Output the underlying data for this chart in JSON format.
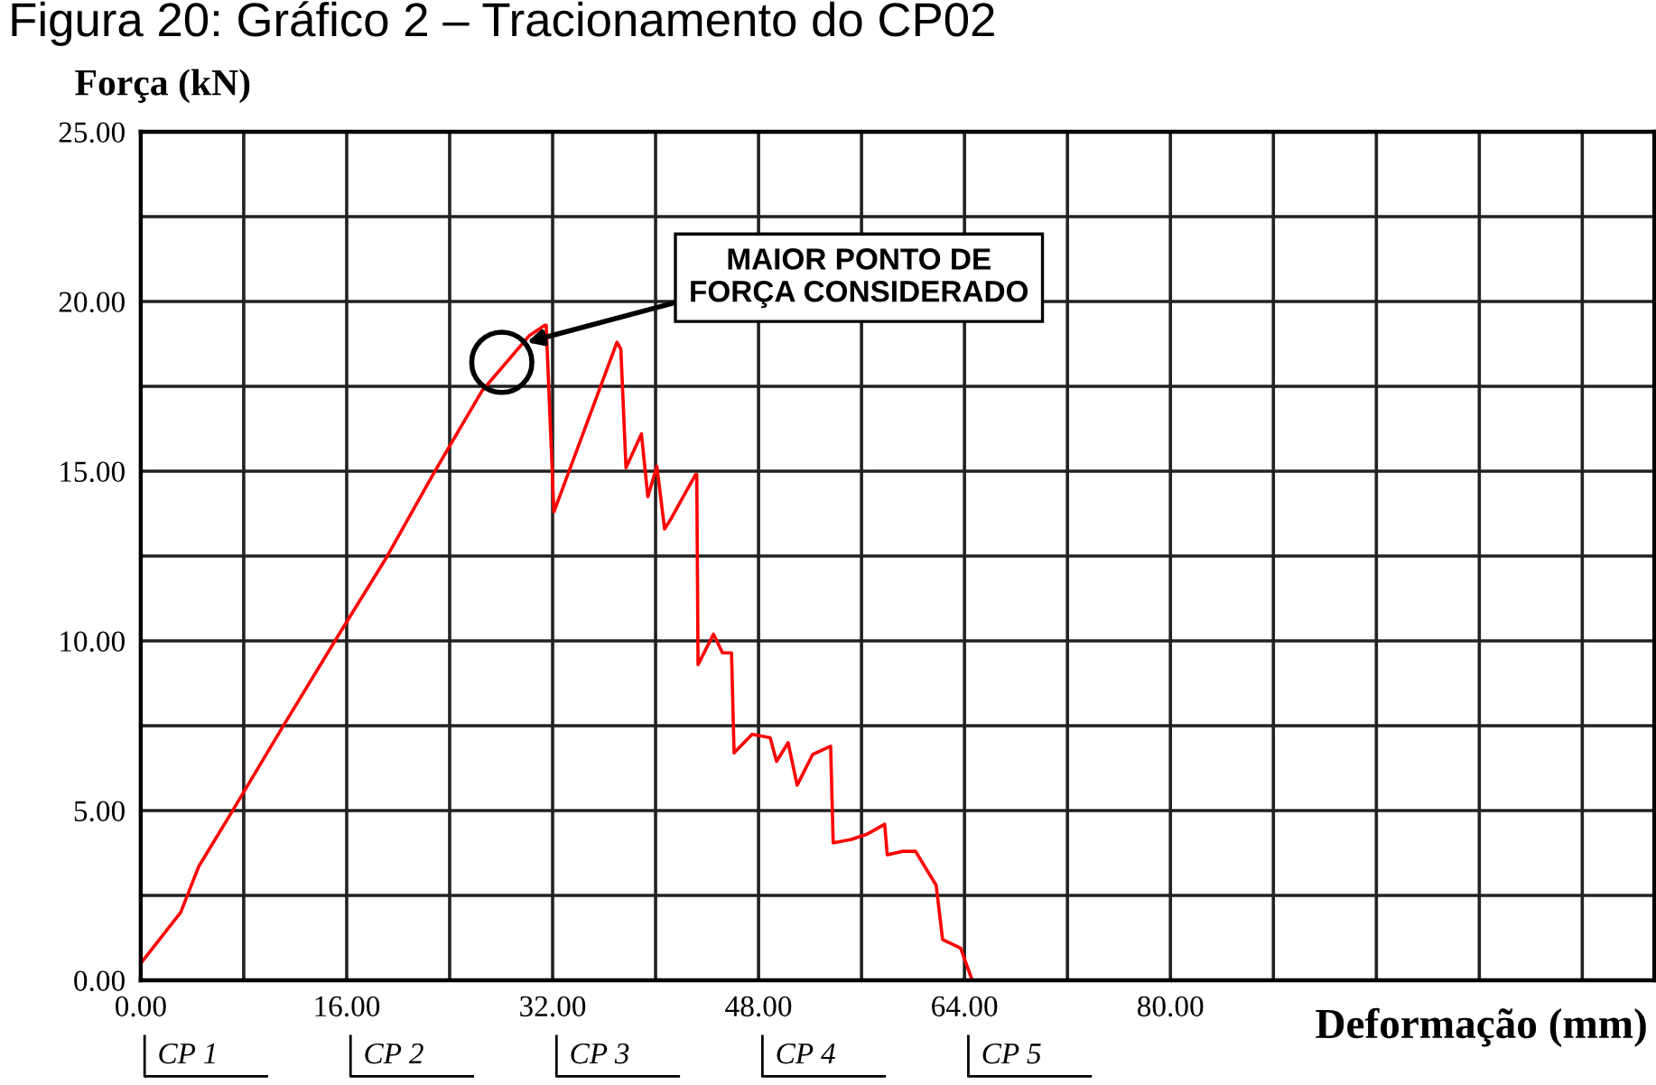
{
  "chart_data": {
    "type": "line",
    "title": "Figura 20: Gráfico 2 – Tracionamento do CP02",
    "xlabel": "Deformação (mm)",
    "ylabel": "Força (kN)",
    "x": [
      0,
      3.1,
      4.5,
      7.06,
      11.0,
      15.25,
      19.0,
      22.7,
      26.5,
      30.2,
      31.4,
      31.5,
      32.1,
      37.0,
      37.3,
      37.7,
      38.9,
      39.4,
      40.1,
      40.7,
      41.2,
      43.1,
      43.2,
      43.3,
      44.5,
      45.2,
      45.9,
      46.1,
      47.5,
      48.9,
      49.4,
      50.3,
      51.0,
      52.2,
      53.6,
      53.8,
      55.2,
      56.4,
      57.8,
      58.0,
      59.2,
      60.2,
      61.8,
      62.3,
      63.7,
      64.6
    ],
    "series": [
      {
        "color": "#ff0000",
        "values": [
          0.5,
          2.0,
          3.35,
          4.95,
          7.45,
          10.1,
          12.4,
          14.9,
          17.36,
          19.0,
          19.3,
          19.3,
          13.8,
          18.8,
          18.6,
          15.1,
          16.1,
          14.25,
          15.15,
          13.3,
          13.6,
          14.9,
          14.9,
          9.3,
          10.2,
          9.65,
          9.65,
          6.7,
          7.25,
          7.15,
          6.45,
          7.0,
          5.75,
          6.65,
          6.9,
          4.05,
          4.15,
          4.3,
          4.6,
          3.7,
          3.8,
          3.8,
          2.8,
          1.2,
          0.95,
          0
        ]
      }
    ],
    "xlim": [
      0,
      117.6
    ],
    "ylim": [
      0,
      25
    ],
    "xticks": [
      {
        "value": 0,
        "label": "0.00"
      },
      {
        "value": 8,
        "label": null
      },
      {
        "value": 16,
        "label": "16.00"
      },
      {
        "value": 24,
        "label": null
      },
      {
        "value": 32,
        "label": "32.00"
      },
      {
        "value": 40,
        "label": null
      },
      {
        "value": 48,
        "label": "48.00"
      },
      {
        "value": 56,
        "label": null
      },
      {
        "value": 64,
        "label": "64.00"
      },
      {
        "value": 72,
        "label": null
      },
      {
        "value": 80,
        "label": "80.00"
      },
      {
        "value": 88,
        "label": null
      },
      {
        "value": 96,
        "label": null
      },
      {
        "value": 104,
        "label": null
      },
      {
        "value": 112,
        "label": null
      }
    ],
    "yticks": [
      {
        "value": 0,
        "label": "0.00"
      },
      {
        "value": 2.5,
        "label": null
      },
      {
        "value": 5,
        "label": "5.00"
      },
      {
        "value": 7.5,
        "label": null
      },
      {
        "value": 10,
        "label": "10.00"
      },
      {
        "value": 12.5,
        "label": null
      },
      {
        "value": 15,
        "label": "15.00"
      },
      {
        "value": 17.5,
        "label": null
      },
      {
        "value": 20,
        "label": "20.00"
      },
      {
        "value": 22.5,
        "label": null
      },
      {
        "value": 25,
        "label": "25.00"
      }
    ],
    "grid": true,
    "marker": "none",
    "line_style": "solid",
    "annotations": [
      {
        "text": "MAIOR PONTO DE\nFORÇA CONSIDERADO",
        "x": 30.0,
        "y": 18.8
      },
      "CP 1",
      "CP 2",
      "CP 3",
      "CP 4",
      "CP 5"
    ]
  }
}
